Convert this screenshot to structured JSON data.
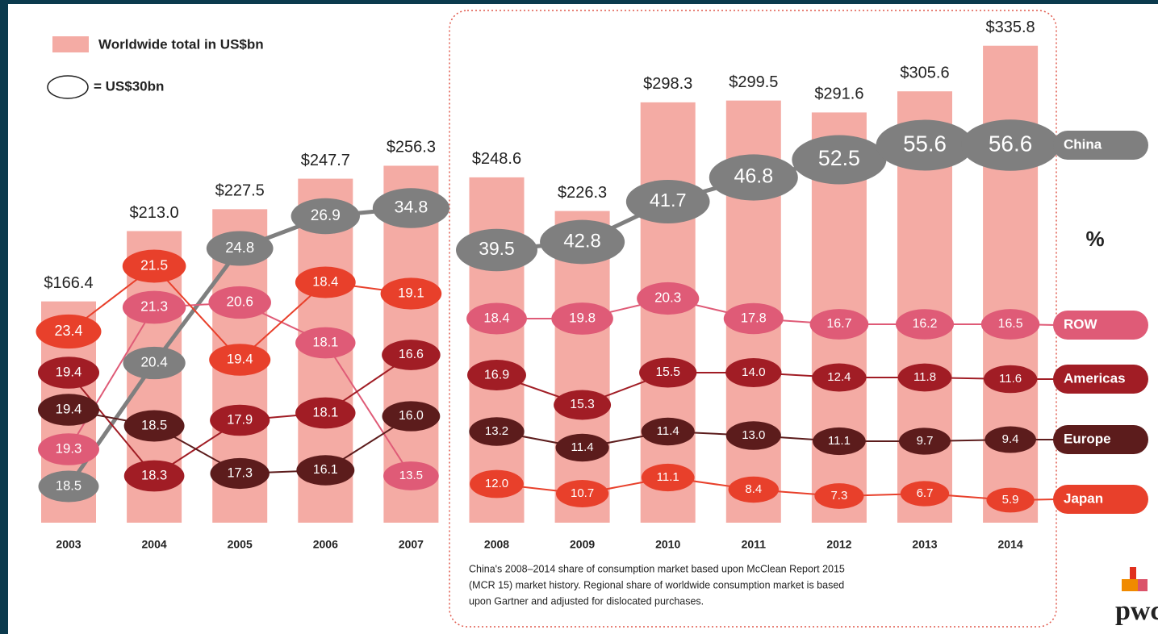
{
  "chart_data": {
    "type": "bubble-line",
    "legend": {
      "bar_label": "Worldwide total in US$bn",
      "bubble_label": "= US$30bn"
    },
    "unit_label": "%",
    "categories": [
      "2003",
      "2004",
      "2005",
      "2006",
      "2007",
      "2008",
      "2009",
      "2010",
      "2011",
      "2012",
      "2013",
      "2014"
    ],
    "totals": {
      "color": "#f4aba4",
      "values": [
        166.4,
        213.0,
        227.5,
        247.7,
        256.3,
        248.6,
        226.3,
        298.3,
        299.5,
        291.6,
        305.6,
        335.8
      ],
      "value_labels": [
        "$166.4",
        "$213.0",
        "$227.5",
        "$247.7",
        "$256.3",
        "$248.6",
        "$226.3",
        "$298.3",
        "$299.5",
        "$291.6",
        "$305.6",
        "$335.8"
      ]
    },
    "series": [
      {
        "name": "China",
        "color": "#7f7f7f",
        "values": [
          18.5,
          20.4,
          24.8,
          26.9,
          34.8,
          39.5,
          42.8,
          41.7,
          46.8,
          52.5,
          55.6,
          56.6
        ],
        "value_labels": [
          "18.5",
          "20.4",
          "24.8",
          "26.9",
          "34.8",
          "39.5",
          "42.8",
          "41.7",
          "46.8",
          "52.5",
          "55.6",
          "56.6"
        ]
      },
      {
        "name": "ROW",
        "color": "#df5b77",
        "values": [
          19.3,
          21.3,
          20.6,
          18.1,
          13.5,
          18.4,
          19.8,
          20.3,
          17.8,
          16.7,
          16.2,
          16.5
        ],
        "value_labels": [
          "19.3",
          "21.3",
          "20.6",
          "18.1",
          "13.5",
          "18.4",
          "19.8",
          "20.3",
          "17.8",
          "16.7",
          "16.2",
          "16.5"
        ]
      },
      {
        "name": "Americas",
        "color": "#a11d25",
        "values": [
          19.4,
          18.3,
          17.9,
          18.1,
          16.6,
          16.9,
          15.3,
          15.5,
          14.0,
          12.4,
          11.8,
          11.6
        ],
        "value_labels": [
          "19.4",
          "18.3",
          "17.9",
          "18.1",
          "16.6",
          "16.9",
          "15.3",
          "15.5",
          "14.0",
          "12.4",
          "11.8",
          "11.6"
        ]
      },
      {
        "name": "Europe",
        "color": "#5c1c1c",
        "values": [
          19.4,
          18.5,
          17.3,
          16.1,
          16.0,
          13.2,
          11.4,
          11.4,
          13.0,
          11.1,
          9.7,
          9.4
        ],
        "value_labels": [
          "19.4",
          "18.5",
          "17.3",
          "16.1",
          "16.0",
          "13.2",
          "11.4",
          "11.4",
          "13.0",
          "11.1",
          "9.7",
          "9.4"
        ]
      },
      {
        "name": "Japan",
        "color": "#e8402b",
        "values": [
          23.4,
          21.5,
          19.4,
          18.4,
          19.1,
          12.0,
          10.7,
          11.1,
          8.4,
          7.3,
          6.7,
          5.9
        ],
        "value_labels": [
          "23.4",
          "21.5",
          "19.4",
          "18.4",
          "19.1",
          "12.0",
          "10.7",
          "11.1",
          "8.4",
          "7.3",
          "6.7",
          "5.9"
        ]
      }
    ],
    "note_lines": [
      "China's 2008–2014 share of consumption market based upon McClean Report 2015",
      "(MCR 15) market history. Regional share of worldwide consumption market is based",
      "upon Gartner and adjusted for dislocated purchases."
    ],
    "logo": "pwc"
  }
}
